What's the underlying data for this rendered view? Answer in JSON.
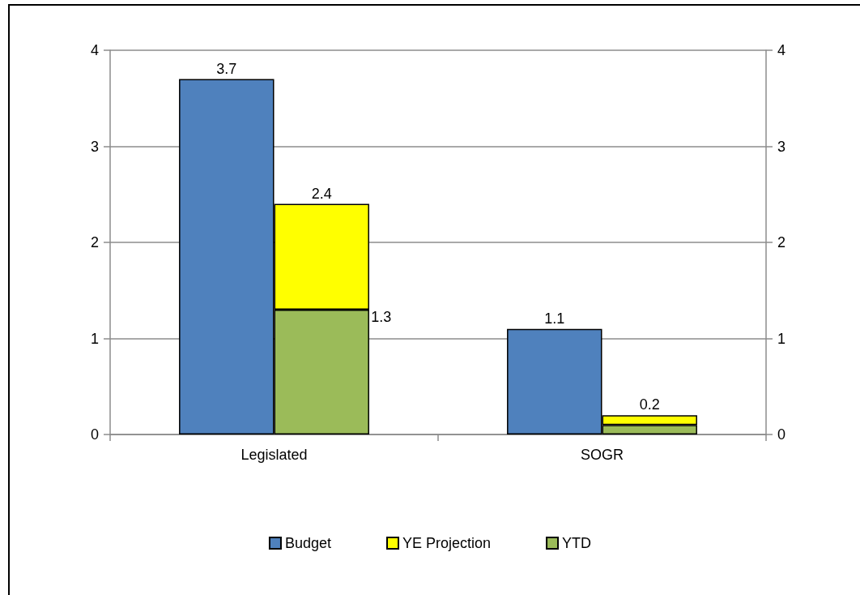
{
  "chart_data": {
    "type": "bar",
    "categories": [
      "Legislated",
      "SOGR"
    ],
    "series": [
      {
        "name": "Budget",
        "color": "#4f81bd",
        "values": [
          3.7,
          1.1
        ],
        "axis": "y2",
        "value_labels": [
          "3.7",
          "1.1"
        ]
      },
      {
        "name": "YTD",
        "color": "#9bbb59",
        "values": [
          1.3,
          0.1
        ],
        "value_labels": [
          "1.3",
          null
        ]
      },
      {
        "name": "YE Projection",
        "color": "#ffff00",
        "values": [
          1.1,
          0.1
        ]
      }
    ],
    "stacked": true,
    "totals": [
      "2.4",
      "0.2"
    ],
    "ylim": [
      0,
      4
    ],
    "yticks": [
      0,
      1,
      2,
      3,
      4
    ],
    "y2lim": [
      0,
      4
    ],
    "y2ticks": [
      0,
      1,
      2,
      3,
      4
    ],
    "grid": "y",
    "legend": "bottom"
  }
}
